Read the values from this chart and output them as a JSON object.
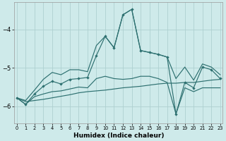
{
  "xlabel": "Humidex (Indice chaleur)",
  "background_color": "#ceeaea",
  "grid_color": "#aed0d0",
  "line_color": "#2d7070",
  "x": [
    0,
    1,
    2,
    3,
    4,
    5,
    6,
    7,
    8,
    9,
    10,
    11,
    12,
    13,
    14,
    15,
    16,
    17,
    18,
    19,
    20,
    21,
    22,
    23
  ],
  "line_main": [
    -5.78,
    -5.95,
    -5.68,
    -5.48,
    -5.35,
    -5.42,
    -5.3,
    -5.28,
    -5.25,
    -4.68,
    -4.18,
    -4.48,
    -3.62,
    -3.48,
    -4.55,
    -4.6,
    -4.65,
    -4.72,
    -6.2,
    -5.38,
    -5.52,
    -4.98,
    -5.05,
    -5.28
  ],
  "line_upper": [
    -5.78,
    -5.85,
    -5.58,
    -5.3,
    -5.12,
    -5.18,
    -5.05,
    -5.05,
    -5.1,
    -4.42,
    -4.18,
    -4.48,
    -3.62,
    -3.48,
    -4.55,
    -4.6,
    -4.65,
    -4.72,
    -5.28,
    -4.98,
    -5.32,
    -4.9,
    -4.98,
    -5.18
  ],
  "line_lower": [
    -5.78,
    -5.95,
    -5.75,
    -5.68,
    -5.62,
    -5.6,
    -5.55,
    -5.5,
    -5.52,
    -5.28,
    -5.22,
    -5.28,
    -5.3,
    -5.28,
    -5.22,
    -5.22,
    -5.28,
    -5.38,
    -6.2,
    -5.52,
    -5.62,
    -5.52,
    -5.52,
    -5.52
  ],
  "line_trend": [
    -5.78,
    -5.88,
    -5.85,
    -5.82,
    -5.78,
    -5.74,
    -5.7,
    -5.65,
    -5.62,
    -5.6,
    -5.58,
    -5.55,
    -5.52,
    -5.5,
    -5.48,
    -5.45,
    -5.42,
    -5.4,
    -5.4,
    -5.38,
    -5.38,
    -5.35,
    -5.32,
    -5.3
  ],
  "ylim": [
    -6.45,
    -3.3
  ],
  "xlim": [
    -0.3,
    23.3
  ],
  "yticks": [
    -6,
    -5,
    -4
  ],
  "xticks": [
    0,
    1,
    2,
    3,
    4,
    5,
    6,
    7,
    8,
    9,
    10,
    11,
    12,
    13,
    14,
    15,
    16,
    17,
    18,
    19,
    20,
    21,
    22,
    23
  ]
}
